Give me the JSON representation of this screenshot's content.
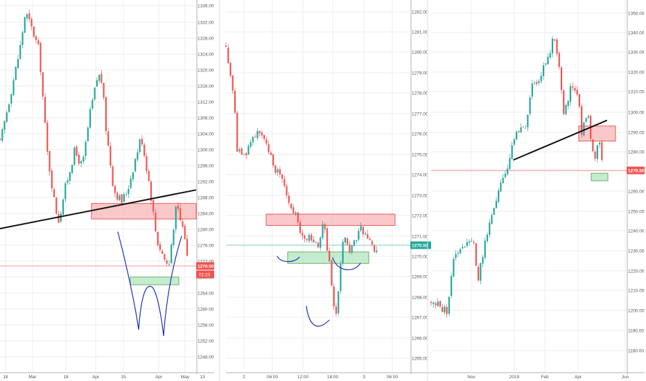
{
  "colors": {
    "up": "#26a69a",
    "down": "#ef5350",
    "grid": "#ececec",
    "axis_text": "#555555",
    "resistance_fill": "#f8b6b6",
    "resistance_edge": "#e53935",
    "support_fill": "#b7e7c2",
    "support_edge": "#43a047",
    "trendline": "#111111",
    "sketch": "#1e2fb8"
  },
  "chart_data": [
    {
      "type": "candlestick",
      "ylim": [
        1246,
        1338
      ],
      "y_ticks": [
        "1336.00",
        "1332.00",
        "1328.00",
        "1324.00",
        "1320.00",
        "1316.00",
        "1312.00",
        "1308.00",
        "1304.00",
        "1300.00",
        "1296.00",
        "1292.00",
        "1288.00",
        "1284.00",
        "1280.00",
        "1276.00",
        "1272.00",
        "1268.00",
        "1264.00",
        "1260.00",
        "1256.00",
        "1252.00",
        "1248.00"
      ],
      "x_ticks": [
        "18",
        "Mar",
        "18",
        "Apr",
        "15",
        "Apr",
        "May",
        "13"
      ],
      "price_label": "1270.50",
      "countdown_label": "01:23",
      "close_path": [
        [
          0,
          1302
        ],
        [
          5,
          1314
        ],
        [
          10,
          1326
        ],
        [
          13,
          1336
        ],
        [
          16,
          1332
        ],
        [
          20,
          1326
        ],
        [
          24,
          1300
        ],
        [
          28,
          1286
        ],
        [
          30,
          1282
        ],
        [
          33,
          1290
        ],
        [
          38,
          1300
        ],
        [
          42,
          1296
        ],
        [
          46,
          1310
        ],
        [
          50,
          1320
        ],
        [
          52,
          1318
        ],
        [
          54,
          1306
        ],
        [
          58,
          1290
        ],
        [
          62,
          1287
        ],
        [
          65,
          1290
        ],
        [
          68,
          1296
        ],
        [
          72,
          1304
        ],
        [
          76,
          1292
        ],
        [
          80,
          1277
        ],
        [
          84,
          1272
        ],
        [
          86,
          1270
        ],
        [
          88,
          1279
        ],
        [
          90,
          1286
        ],
        [
          92,
          1282
        ],
        [
          94,
          1279
        ],
        [
          96,
          1270
        ]
      ],
      "annotations": {
        "resistance_zone": [
          1282.5,
          1286.5
        ],
        "support_zone": [
          1265.5,
          1267.5
        ],
        "trendline": [
          [
            0,
            1280
          ],
          [
            100,
            1290
          ]
        ]
      }
    },
    {
      "type": "candlestick",
      "ylim": [
        1264.5,
        1283.5
      ],
      "y_ticks": [
        "1282.00",
        "1281.00",
        "1280.00",
        "1279.00",
        "1278.00",
        "1277.00",
        "1276.00",
        "1275.00",
        "1274.00",
        "1273.00",
        "1272.00",
        "1271.00",
        "1270.00",
        "1269.00",
        "1268.00",
        "1267.00",
        "1266.00",
        "1265.00"
      ],
      "x_ticks": [
        "2",
        "06:00",
        "12:00",
        "18:00",
        "3",
        "06:00"
      ],
      "price_label": "1270.50",
      "close_path": [
        [
          0,
          1281.5
        ],
        [
          2,
          1280
        ],
        [
          4,
          1279
        ],
        [
          6,
          1276
        ],
        [
          10,
          1275.5
        ],
        [
          14,
          1276.5
        ],
        [
          18,
          1277
        ],
        [
          22,
          1276
        ],
        [
          26,
          1275
        ],
        [
          30,
          1274.6
        ],
        [
          34,
          1273.2
        ],
        [
          38,
          1272.5
        ],
        [
          42,
          1271
        ],
        [
          46,
          1271.4
        ],
        [
          50,
          1270.6
        ],
        [
          53,
          1272
        ],
        [
          56,
          1270
        ],
        [
          58,
          1268
        ],
        [
          60,
          1267
        ],
        [
          62,
          1269.5
        ],
        [
          64,
          1271.5
        ],
        [
          67,
          1270.5
        ],
        [
          70,
          1271
        ],
        [
          73,
          1271.8
        ],
        [
          76,
          1271.3
        ],
        [
          80,
          1270.7
        ],
        [
          82,
          1270.5
        ]
      ],
      "annotations": {
        "resistance_zone": [
          1271.9,
          1272.5
        ],
        "support_zone": [
          1269.9,
          1270.5
        ]
      }
    },
    {
      "type": "candlestick",
      "ylim": [
        1172,
        1356
      ],
      "y_ticks": [
        "1350.00",
        "1340.00",
        "1330.00",
        "1320.00",
        "1310.00",
        "1300.00",
        "1290.00",
        "1280.00",
        "1270.00",
        "1260.00",
        "1250.00",
        "1240.00",
        "1230.00",
        "1220.00",
        "1210.00",
        "1200.00",
        "1190.00",
        "1180.00"
      ],
      "x_ticks": [
        "Nov",
        "2019",
        "Feb",
        "Apr",
        "Jun"
      ],
      "price_label": "1270.50",
      "close_path": [
        [
          0,
          1200
        ],
        [
          8,
          1195
        ],
        [
          12,
          1225
        ],
        [
          18,
          1232
        ],
        [
          22,
          1230
        ],
        [
          24,
          1212
        ],
        [
          27,
          1228
        ],
        [
          32,
          1250
        ],
        [
          36,
          1262
        ],
        [
          40,
          1275
        ],
        [
          44,
          1292
        ],
        [
          48,
          1290
        ],
        [
          52,
          1315
        ],
        [
          56,
          1320
        ],
        [
          60,
          1330
        ],
        [
          63,
          1342
        ],
        [
          66,
          1320
        ],
        [
          68,
          1298
        ],
        [
          72,
          1316
        ],
        [
          75,
          1310
        ],
        [
          77,
          1290
        ],
        [
          80,
          1302
        ],
        [
          82,
          1284
        ],
        [
          84,
          1277
        ],
        [
          86,
          1284
        ],
        [
          88,
          1270
        ]
      ],
      "annotations": {
        "resistance_zone": [
          1285,
          1293
        ],
        "support_zone": [
          1264,
          1268
        ],
        "trendline": [
          [
            42,
            1275
          ],
          [
            90,
            1296
          ]
        ]
      }
    }
  ]
}
